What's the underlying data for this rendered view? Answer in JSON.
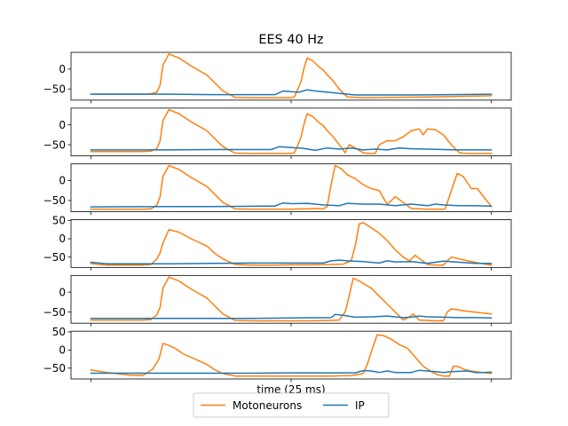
{
  "chart_data": {
    "type": "line",
    "title": "EES 40 Hz",
    "xlabel": "time (25 ms)",
    "ylabel": "",
    "legend_position": "bottom-center",
    "legend_columns": 2,
    "colors": {
      "Motoneurons": "#ff7f0e",
      "IP": "#1f77b4"
    },
    "x_range": [
      0,
      100
    ],
    "grid": false,
    "panels": [
      {
        "ylim": [
          -78,
          42
        ],
        "yticks": [
          0,
          -50
        ],
        "series": [
          {
            "name": "Motoneurons",
            "x": [
              0,
              13,
              15,
              16.5,
              17.3,
              18,
              19.5,
              22,
              25,
              29,
              31,
              33,
              36,
              40,
              46,
              50,
              50.8,
              51.5,
              52.5,
              53.3,
              54,
              55.5,
              57,
              58,
              59,
              60.5,
              62,
              64,
              68,
              75,
              85,
              100
            ],
            "y": [
              -63,
              -63,
              -62,
              -58,
              -40,
              10,
              38,
              28,
              8,
              -15,
              -35,
              -55,
              -71,
              -72,
              -72,
              -72,
              -70,
              -55,
              -30,
              5,
              28,
              20,
              5,
              -2,
              -14,
              -30,
              -50,
              -70,
              -72,
              -71,
              -70,
              -67
            ]
          },
          {
            "name": "IP",
            "x": [
              0,
              20,
              30,
              40,
              46,
              48,
              50,
              52,
              54,
              56,
              58,
              60,
              62,
              64,
              66,
              70,
              80,
              90,
              100
            ],
            "y": [
              -63,
              -63,
              -64,
              -64,
              -64,
              -55,
              -57,
              -58,
              -52,
              -55,
              -57,
              -59,
              -61,
              -63,
              -65,
              -65,
              -65,
              -64,
              -63
            ]
          }
        ]
      },
      {
        "ylim": [
          -78,
          42
        ],
        "yticks": [
          0,
          -50
        ],
        "series": [
          {
            "name": "Motoneurons",
            "x": [
              0,
              13,
              15,
              16.5,
              17.3,
              18,
              19.5,
              22,
              25,
              29,
              31,
              33,
              36,
              40,
              46,
              50,
              50.8,
              51.5,
              52.5,
              53.3,
              54,
              55.5,
              57,
              58,
              59,
              60.5,
              62,
              63.5,
              64.5,
              66,
              68,
              69.5,
              71,
              72,
              74,
              76,
              78,
              80,
              82,
              83,
              84,
              86,
              88,
              90,
              92,
              94,
              100
            ],
            "y": [
              -67,
              -67,
              -66,
              -60,
              -40,
              10,
              38,
              28,
              8,
              -15,
              -35,
              -55,
              -71,
              -72,
              -72,
              -72,
              -70,
              -55,
              -30,
              5,
              28,
              20,
              5,
              -2,
              -14,
              -30,
              -50,
              -70,
              -50,
              -58,
              -70,
              -72,
              -72,
              -50,
              -40,
              -40,
              -30,
              -15,
              -10,
              -25,
              -10,
              -12,
              -25,
              -50,
              -70,
              -72,
              -72
            ]
          },
          {
            "name": "IP",
            "x": [
              0,
              20,
              30,
              40,
              45,
              47,
              50,
              53,
              56,
              59,
              62,
              65,
              68,
              71,
              74,
              77,
              80,
              84,
              88,
              92,
              96,
              100
            ],
            "y": [
              -63,
              -63,
              -62,
              -62,
              -62,
              -55,
              -57,
              -59,
              -64,
              -58,
              -61,
              -58,
              -63,
              -61,
              -63,
              -58,
              -60,
              -61,
              -62,
              -63,
              -63,
              -63
            ]
          }
        ]
      },
      {
        "ylim": [
          -78,
          42
        ],
        "yticks": [
          0,
          -50
        ],
        "series": [
          {
            "name": "Motoneurons",
            "x": [
              0,
              13,
              15,
              16.5,
              17.3,
              18,
              19.5,
              22,
              25,
              29,
              31,
              33,
              36,
              40,
              46,
              50,
              52,
              54,
              56,
              58,
              59,
              60,
              61,
              62.5,
              64,
              66,
              68,
              70,
              72,
              74,
              76,
              78,
              80,
              84,
              88,
              88.5,
              89.5,
              90.5,
              91.5,
              93,
              95,
              96.5,
              98,
              100
            ],
            "y": [
              -72,
              -72,
              -71,
              -62,
              -40,
              10,
              38,
              28,
              8,
              -15,
              -35,
              -55,
              -71,
              -72,
              -72,
              -72,
              -71,
              -71,
              -70,
              -71,
              -65,
              -10,
              38,
              30,
              15,
              5,
              -10,
              -20,
              -25,
              -60,
              -40,
              -55,
              -70,
              -72,
              -72,
              -70,
              -40,
              -10,
              18,
              10,
              -20,
              -20,
              -40,
              -65
            ]
          },
          {
            "name": "IP",
            "x": [
              0,
              20,
              30,
              44,
              46,
              48,
              50,
              54,
              58,
              62,
              64,
              68,
              72,
              76,
              80,
              84,
              86,
              88,
              92,
              96,
              100
            ],
            "y": [
              -66,
              -65,
              -65,
              -64,
              -64,
              -56,
              -58,
              -57,
              -61,
              -63,
              -57,
              -59,
              -59,
              -63,
              -59,
              -63,
              -59,
              -61,
              -63,
              -63,
              -64
            ]
          }
        ]
      },
      {
        "ylim": [
          -78,
          52
        ],
        "yticks": [
          50,
          0,
          -50
        ],
        "series": [
          {
            "name": "Motoneurons",
            "x": [
              0,
              2,
              4,
              13,
              15,
              16.5,
              17.3,
              18,
              19.5,
              22,
              25,
              29,
              31,
              33,
              36,
              40,
              46,
              50,
              55,
              60,
              63,
              65,
              66,
              67,
              68,
              70,
              72,
              74,
              76,
              78,
              79.5,
              81,
              84,
              86,
              88,
              89,
              90,
              92,
              94,
              98,
              100
            ],
            "y": [
              -67,
              -70,
              -72,
              -72,
              -70,
              -55,
              -38,
              -12,
              25,
              18,
              0,
              -20,
              -40,
              -55,
              -70,
              -72,
              -72,
              -71,
              -71,
              -70,
              -69,
              -60,
              -20,
              40,
              44,
              30,
              15,
              -5,
              -30,
              -50,
              -60,
              -45,
              -70,
              -72,
              -72,
              -60,
              -50,
              -55,
              -60,
              -68,
              -72
            ]
          },
          {
            "name": "IP",
            "x": [
              0,
              2,
              4,
              20,
              30,
              40,
              50,
              58,
              60,
              62,
              64,
              68,
              72,
              74,
              76,
              80,
              84,
              88,
              92,
              96,
              100
            ],
            "y": [
              -64,
              -66,
              -68,
              -68,
              -67,
              -66,
              -66,
              -66,
              -60,
              -58,
              -60,
              -62,
              -66,
              -60,
              -63,
              -62,
              -67,
              -61,
              -64,
              -67,
              -67
            ]
          }
        ]
      },
      {
        "ylim": [
          -78,
          42
        ],
        "yticks": [
          0,
          -50
        ],
        "series": [
          {
            "name": "Motoneurons",
            "x": [
              0,
              13,
              15,
              16.5,
              17.3,
              18,
              19.5,
              22,
              25,
              29,
              31,
              33,
              36,
              40,
              46,
              50,
              55,
              60,
              62,
              63.5,
              64.5,
              65.5,
              67,
              70,
              72,
              74,
              76,
              78,
              79.5,
              80.5,
              82,
              86,
              88,
              89,
              90,
              94,
              100
            ],
            "y": [
              -70,
              -70,
              -69,
              -57,
              -38,
              10,
              38,
              28,
              8,
              -15,
              -35,
              -55,
              -71,
              -72,
              -72,
              -72,
              -72,
              -71,
              -70,
              -50,
              -10,
              35,
              28,
              10,
              -10,
              -30,
              -50,
              -70,
              -62,
              -55,
              -70,
              -72,
              -72,
              -50,
              -42,
              -48,
              -55
            ]
          },
          {
            "name": "IP",
            "x": [
              0,
              20,
              30,
              40,
              50,
              60,
              61,
              63,
              66,
              70,
              74,
              78,
              80,
              82,
              84,
              88,
              92,
              96,
              100
            ],
            "y": [
              -66,
              -66,
              -66,
              -66,
              -65,
              -64,
              -56,
              -58,
              -63,
              -62,
              -60,
              -64,
              -63,
              -60,
              -62,
              -63,
              -64,
              -64,
              -65
            ]
          }
        ]
      },
      {
        "ylim": [
          -80,
          52
        ],
        "yticks": [
          50,
          0,
          -50
        ],
        "series": [
          {
            "name": "Motoneurons",
            "x": [
              0,
              4,
              8,
              10,
              13,
              14.5,
              15.5,
              17,
              18,
              19,
              21,
              23,
              26,
              29,
              31,
              33,
              36,
              40,
              50,
              60,
              65,
              68,
              69,
              70,
              71.5,
              73,
              75,
              77,
              79,
              81,
              83,
              85,
              86.5,
              88,
              89.5,
              90.5,
              91.5,
              93.5,
              96,
              100
            ],
            "y": [
              -55,
              -62,
              -67,
              -70,
              -70,
              -60,
              -52,
              -25,
              18,
              15,
              5,
              -10,
              -25,
              -40,
              -55,
              -65,
              -72,
              -72,
              -72,
              -72,
              -71,
              -65,
              -40,
              -5,
              42,
              40,
              30,
              15,
              5,
              -20,
              -45,
              -60,
              -68,
              -72,
              -72,
              -45,
              -45,
              -55,
              -60,
              -65
            ]
          },
          {
            "name": "IP",
            "x": [
              0,
              20,
              30,
              40,
              50,
              60,
              66,
              68,
              70,
              72,
              74,
              76,
              80,
              82,
              84,
              86,
              88,
              90,
              94,
              96,
              98,
              100
            ],
            "y": [
              -64,
              -64,
              -64,
              -64,
              -63,
              -63,
              -63,
              -57,
              -58,
              -62,
              -58,
              -62,
              -62,
              -56,
              -58,
              -60,
              -62,
              -60,
              -58,
              -62,
              -62,
              -61
            ]
          }
        ]
      }
    ],
    "legend": [
      {
        "label": "Motoneurons",
        "color": "#ff7f0e"
      },
      {
        "label": "IP",
        "color": "#1f77b4"
      }
    ]
  }
}
